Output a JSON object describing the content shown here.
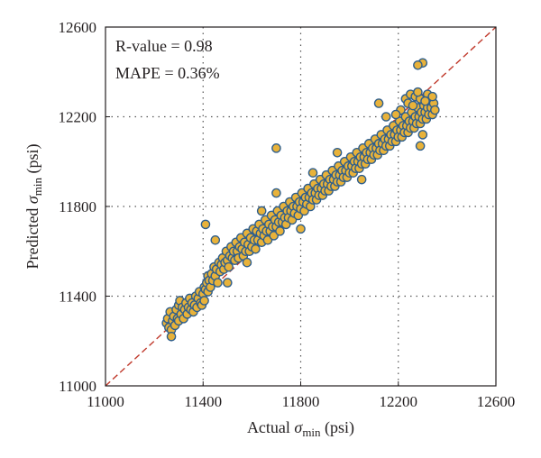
{
  "chart_data": {
    "type": "scatter",
    "title": "",
    "xlabel": {
      "prefix": "Actual ",
      "symbol": "σ",
      "sub": "min",
      "suffix": " (psi)"
    },
    "ylabel": {
      "prefix": "Predicted ",
      "symbol": "σ",
      "sub": "min",
      "suffix": " (psi)"
    },
    "xlim": [
      11000,
      12600
    ],
    "ylim": [
      11000,
      12600
    ],
    "xticks": [
      "11000",
      "11400",
      "11800",
      "12200",
      "12600"
    ],
    "yticks": [
      "11000",
      "11400",
      "11800",
      "12200",
      "12600"
    ],
    "grid": "dotted",
    "annotations": [
      "R-value = 0.98",
      "MAPE = 0.36%"
    ],
    "reference_line": {
      "from": [
        11000,
        11000
      ],
      "to": [
        12600,
        12600
      ],
      "style": "dashed",
      "color": "#c0392b"
    },
    "marker": {
      "fill": "#e8b23a",
      "edge": "#2e5e8c"
    },
    "series": [
      {
        "points": [
          [
            11250,
            11280
          ],
          [
            11255,
            11300
          ],
          [
            11260,
            11260
          ],
          [
            11265,
            11330
          ],
          [
            11270,
            11250
          ],
          [
            11270,
            11220
          ],
          [
            11275,
            11290
          ],
          [
            11280,
            11310
          ],
          [
            11285,
            11270
          ],
          [
            11290,
            11340
          ],
          [
            11295,
            11300
          ],
          [
            11300,
            11360
          ],
          [
            11300,
            11290
          ],
          [
            11305,
            11380
          ],
          [
            11310,
            11320
          ],
          [
            11315,
            11350
          ],
          [
            11320,
            11300
          ],
          [
            11325,
            11340
          ],
          [
            11330,
            11370
          ],
          [
            11335,
            11320
          ],
          [
            11340,
            11350
          ],
          [
            11345,
            11390
          ],
          [
            11350,
            11340
          ],
          [
            11355,
            11370
          ],
          [
            11360,
            11330
          ],
          [
            11365,
            11360
          ],
          [
            11370,
            11400
          ],
          [
            11375,
            11350
          ],
          [
            11380,
            11390
          ],
          [
            11385,
            11420
          ],
          [
            11390,
            11370
          ],
          [
            11395,
            11360
          ],
          [
            11400,
            11410
          ],
          [
            11405,
            11440
          ],
          [
            11405,
            11380
          ],
          [
            11410,
            11430
          ],
          [
            11410,
            11720
          ],
          [
            11415,
            11460
          ],
          [
            11420,
            11420
          ],
          [
            11420,
            11490
          ],
          [
            11425,
            11470
          ],
          [
            11430,
            11440
          ],
          [
            11435,
            11500
          ],
          [
            11440,
            11470
          ],
          [
            11445,
            11530
          ],
          [
            11450,
            11490
          ],
          [
            11455,
            11520
          ],
          [
            11460,
            11460
          ],
          [
            11465,
            11550
          ],
          [
            11470,
            11510
          ],
          [
            11475,
            11540
          ],
          [
            11480,
            11570
          ],
          [
            11485,
            11520
          ],
          [
            11490,
            11550
          ],
          [
            11495,
            11600
          ],
          [
            11500,
            11560
          ],
          [
            11505,
            11530
          ],
          [
            11510,
            11580
          ],
          [
            11515,
            11620
          ],
          [
            11520,
            11570
          ],
          [
            11525,
            11600
          ],
          [
            11530,
            11560
          ],
          [
            11535,
            11640
          ],
          [
            11540,
            11600
          ],
          [
            11545,
            11570
          ],
          [
            11550,
            11620
          ],
          [
            11555,
            11660
          ],
          [
            11560,
            11610
          ],
          [
            11565,
            11580
          ],
          [
            11570,
            11640
          ],
          [
            11575,
            11600
          ],
          [
            11580,
            11680
          ],
          [
            11585,
            11630
          ],
          [
            11590,
            11600
          ],
          [
            11595,
            11660
          ],
          [
            11600,
            11620
          ],
          [
            11605,
            11700
          ],
          [
            11610,
            11650
          ],
          [
            11615,
            11610
          ],
          [
            11620,
            11690
          ],
          [
            11625,
            11650
          ],
          [
            11630,
            11720
          ],
          [
            11635,
            11680
          ],
          [
            11640,
            11640
          ],
          [
            11645,
            11700
          ],
          [
            11650,
            11670
          ],
          [
            11655,
            11740
          ],
          [
            11660,
            11690
          ],
          [
            11665,
            11650
          ],
          [
            11670,
            11720
          ],
          [
            11675,
            11690
          ],
          [
            11680,
            11760
          ],
          [
            11685,
            11710
          ],
          [
            11690,
            11670
          ],
          [
            11695,
            11740
          ],
          [
            11700,
            12060
          ],
          [
            11700,
            11710
          ],
          [
            11705,
            11780
          ],
          [
            11710,
            11730
          ],
          [
            11715,
            11690
          ],
          [
            11720,
            11760
          ],
          [
            11725,
            11730
          ],
          [
            11730,
            11800
          ],
          [
            11735,
            11750
          ],
          [
            11740,
            11720
          ],
          [
            11745,
            11780
          ],
          [
            11750,
            11750
          ],
          [
            11755,
            11820
          ],
          [
            11760,
            11780
          ],
          [
            11765,
            11740
          ],
          [
            11770,
            11800
          ],
          [
            11775,
            11770
          ],
          [
            11780,
            11840
          ],
          [
            11785,
            11800
          ],
          [
            11790,
            11760
          ],
          [
            11795,
            11820
          ],
          [
            11800,
            11790
          ],
          [
            11805,
            11860
          ],
          [
            11810,
            11820
          ],
          [
            11815,
            11780
          ],
          [
            11820,
            11840
          ],
          [
            11825,
            11810
          ],
          [
            11830,
            11880
          ],
          [
            11835,
            11840
          ],
          [
            11840,
            11800
          ],
          [
            11845,
            11860
          ],
          [
            11850,
            11830
          ],
          [
            11855,
            11900
          ],
          [
            11860,
            11860
          ],
          [
            11865,
            11830
          ],
          [
            11870,
            11880
          ],
          [
            11875,
            11850
          ],
          [
            11880,
            11920
          ],
          [
            11885,
            11880
          ],
          [
            11890,
            11850
          ],
          [
            11895,
            11900
          ],
          [
            11900,
            11870
          ],
          [
            11905,
            11940
          ],
          [
            11910,
            11900
          ],
          [
            11915,
            11870
          ],
          [
            11920,
            11920
          ],
          [
            11925,
            11890
          ],
          [
            11930,
            11960
          ],
          [
            11935,
            11920
          ],
          [
            11940,
            11890
          ],
          [
            11945,
            11940
          ],
          [
            11950,
            11910
          ],
          [
            11955,
            11980
          ],
          [
            11960,
            11940
          ],
          [
            11965,
            11910
          ],
          [
            11970,
            11960
          ],
          [
            11975,
            11930
          ],
          [
            11980,
            12000
          ],
          [
            11985,
            11960
          ],
          [
            11990,
            11930
          ],
          [
            11995,
            11980
          ],
          [
            12000,
            11950
          ],
          [
            12005,
            12020
          ],
          [
            12010,
            11980
          ],
          [
            12015,
            11950
          ],
          [
            12020,
            12000
          ],
          [
            12025,
            11970
          ],
          [
            12030,
            12040
          ],
          [
            12035,
            12000
          ],
          [
            12040,
            11970
          ],
          [
            12045,
            12020
          ],
          [
            12050,
            11990
          ],
          [
            12055,
            12060
          ],
          [
            12060,
            12020
          ],
          [
            12065,
            11990
          ],
          [
            12070,
            12040
          ],
          [
            12075,
            12010
          ],
          [
            12080,
            12080
          ],
          [
            12085,
            12040
          ],
          [
            12090,
            12010
          ],
          [
            12095,
            12060
          ],
          [
            12100,
            12030
          ],
          [
            12105,
            12100
          ],
          [
            12110,
            12060
          ],
          [
            12115,
            12030
          ],
          [
            12120,
            12080
          ],
          [
            12125,
            12050
          ],
          [
            12130,
            12120
          ],
          [
            12135,
            12080
          ],
          [
            12140,
            12050
          ],
          [
            12145,
            12100
          ],
          [
            12150,
            12070
          ],
          [
            12155,
            12140
          ],
          [
            12160,
            12100
          ],
          [
            12165,
            12070
          ],
          [
            12170,
            12120
          ],
          [
            12175,
            12090
          ],
          [
            12180,
            12160
          ],
          [
            12185,
            12120
          ],
          [
            12190,
            12090
          ],
          [
            12195,
            12140
          ],
          [
            12200,
            12110
          ],
          [
            12205,
            12180
          ],
          [
            12210,
            12140
          ],
          [
            12215,
            12110
          ],
          [
            12220,
            12160
          ],
          [
            12225,
            12130
          ],
          [
            12230,
            12200
          ],
          [
            12235,
            12160
          ],
          [
            12240,
            12130
          ],
          [
            12245,
            12180
          ],
          [
            12250,
            12150
          ],
          [
            12255,
            12220
          ],
          [
            12260,
            12180
          ],
          [
            12265,
            12150
          ],
          [
            12270,
            12200
          ],
          [
            12275,
            12170
          ],
          [
            12280,
            12240
          ],
          [
            12285,
            12200
          ],
          [
            12290,
            12170
          ],
          [
            12295,
            12220
          ],
          [
            12300,
            12190
          ],
          [
            12305,
            12250
          ],
          [
            12310,
            12220
          ],
          [
            12315,
            12190
          ],
          [
            12320,
            12240
          ],
          [
            12325,
            12210
          ],
          [
            12330,
            12270
          ],
          [
            12335,
            12240
          ],
          [
            12340,
            12210
          ],
          [
            12345,
            12260
          ],
          [
            12350,
            12230
          ],
          [
            12300,
            12440
          ],
          [
            12280,
            12430
          ],
          [
            12120,
            12260
          ],
          [
            12300,
            12120
          ],
          [
            12290,
            12070
          ],
          [
            11640,
            11780
          ],
          [
            11580,
            11550
          ],
          [
            11500,
            11460
          ],
          [
            11450,
            11650
          ],
          [
            11700,
            11860
          ],
          [
            11950,
            12040
          ],
          [
            12050,
            11920
          ],
          [
            12150,
            12200
          ],
          [
            11800,
            11700
          ],
          [
            11850,
            11950
          ],
          [
            12230,
            12280
          ],
          [
            12250,
            12300
          ],
          [
            12270,
            12290
          ],
          [
            12240,
            12260
          ],
          [
            12210,
            12230
          ],
          [
            12190,
            12210
          ],
          [
            12260,
            12250
          ],
          [
            12290,
            12280
          ],
          [
            12320,
            12300
          ],
          [
            12340,
            12290
          ],
          [
            12310,
            12270
          ],
          [
            12280,
            12310
          ]
        ]
      }
    ]
  }
}
